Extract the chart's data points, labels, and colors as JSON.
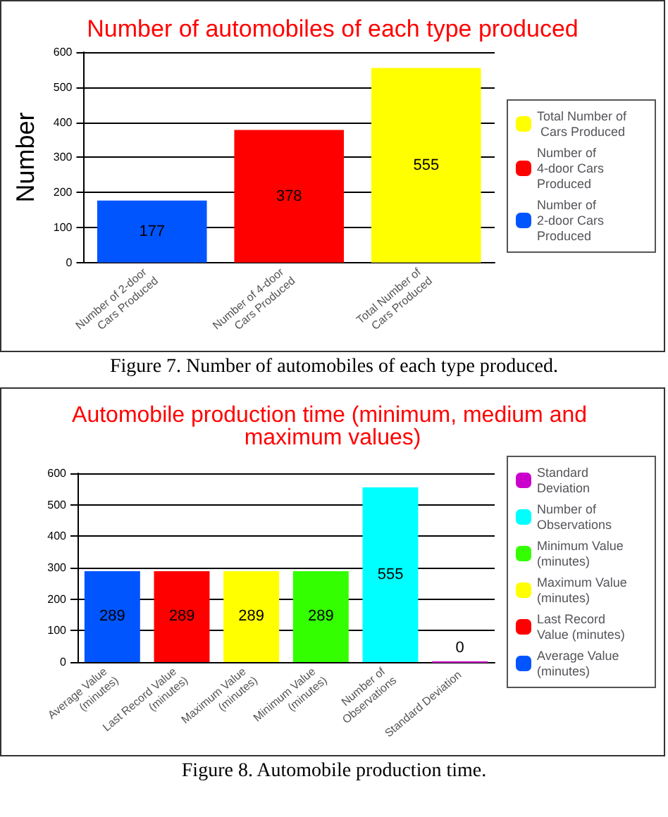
{
  "chart_data": [
    {
      "type": "bar",
      "title": "Number of automobiles of each type produced",
      "ylabel": "Number",
      "categories": [
        "Number of 2-door Cars Produced",
        "Number of 4-door Cars Produced",
        "Total Number of Cars Produced"
      ],
      "series": [
        {
          "name": "Number of 2-door Cars Produced",
          "color": "#0055ff",
          "values": [
            177,
            null,
            null
          ]
        },
        {
          "name": "Number of 4-door Cars Produced",
          "color": "#ff0000",
          "values": [
            null,
            378,
            null
          ]
        },
        {
          "name": "Total Number of Cars Produced",
          "color": "#ffff00",
          "values": [
            null,
            null,
            555
          ]
        }
      ],
      "ylim": [
        0,
        600
      ],
      "yticks": [
        0,
        100,
        200,
        300,
        400,
        500,
        600
      ],
      "grid": "y",
      "legend": "right",
      "data_labels": true,
      "annotations": [
        "Figure 7.  Number of automobiles of each type produced."
      ]
    },
    {
      "type": "bar",
      "title": "Automobile production time (minimum, medium and maximum values)",
      "categories": [
        "Average Value (minutes)",
        "Last Record Value (minutes)",
        "Maximum Value (minutes)",
        "Minimum Value (minutes)",
        "Number of Observations",
        "Standard Deviation"
      ],
      "series": [
        {
          "name": "Average Value (minutes)",
          "color": "#0055ff",
          "values": [
            289,
            null,
            null,
            null,
            null,
            null
          ]
        },
        {
          "name": "Last Record Value (minutes)",
          "color": "#ff0000",
          "values": [
            null,
            289,
            null,
            null,
            null,
            null
          ]
        },
        {
          "name": "Maximum Value (minutes)",
          "color": "#ffff00",
          "values": [
            null,
            null,
            289,
            null,
            null,
            null
          ]
        },
        {
          "name": "Minimum Value (minutes)",
          "color": "#33ff00",
          "values": [
            null,
            null,
            null,
            289,
            null,
            null
          ]
        },
        {
          "name": "Number of Observations",
          "color": "#00ffff",
          "values": [
            null,
            null,
            null,
            null,
            555,
            null
          ]
        },
        {
          "name": "Standard Deviation",
          "color": "#cc00cc",
          "values": [
            null,
            null,
            null,
            null,
            null,
            0
          ]
        }
      ],
      "ylim": [
        0,
        600
      ],
      "yticks": [
        0,
        100,
        200,
        300,
        400,
        500,
        600
      ],
      "grid": "y",
      "legend": "right",
      "data_labels": true,
      "annotations": [
        "Figure 8.  Automobile production time."
      ]
    }
  ]
}
